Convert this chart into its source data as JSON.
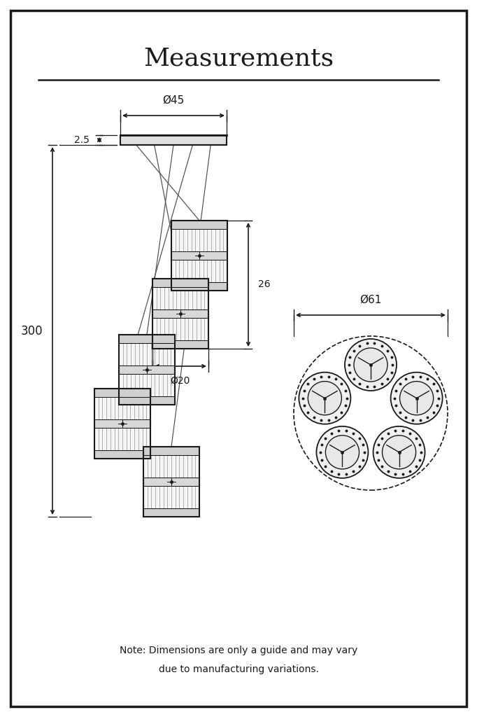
{
  "title": "Measurements",
  "note_line1": "Note: Dimensions are only a guide and may vary",
  "note_line2": "due to manufacturing variations.",
  "bg_color": "#ffffff",
  "border_color": "#1a1a1a",
  "drawing_color": "#1a1a1a",
  "dim_color": "#1a1a1a",
  "dim_45_label": "Ø45",
  "dim_20_label": "Ø20",
  "dim_26_label": "26",
  "dim_300_label": "300",
  "dim_25_label": "2.5",
  "dim_61_label": "Ø61"
}
